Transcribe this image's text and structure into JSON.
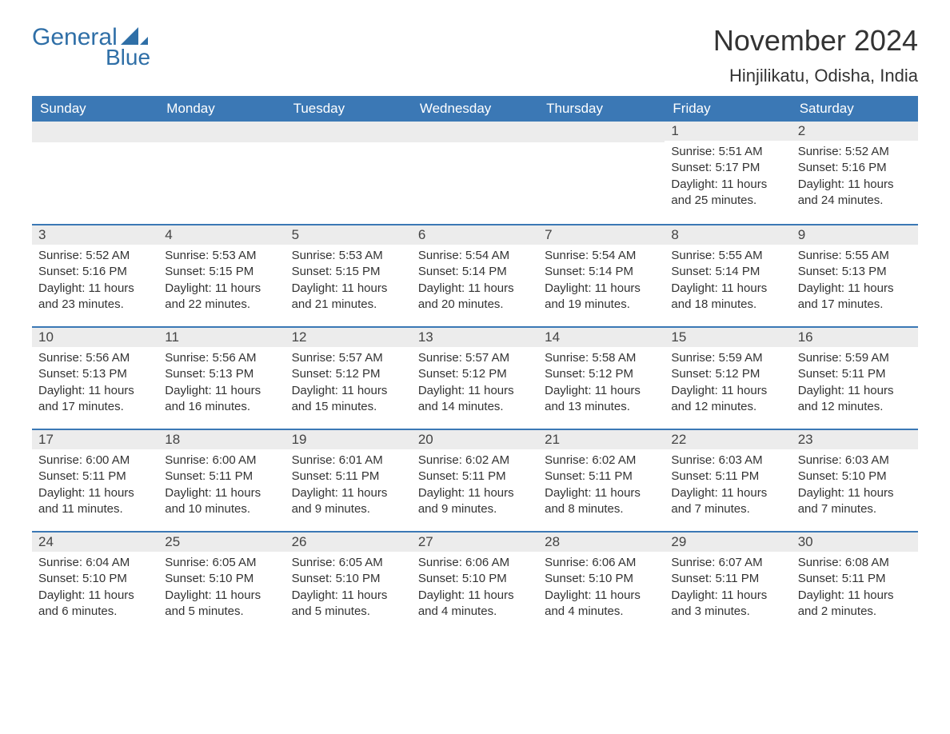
{
  "logo": {
    "text1": "General",
    "text2": "Blue",
    "accent_color": "#2f6fa7"
  },
  "title": "November 2024",
  "location": "Hinjilikatu, Odisha, India",
  "colors": {
    "header_bg": "#3b78b5",
    "header_text": "#ffffff",
    "daynum_bg": "#ececec",
    "daynum_border": "#3b78b5",
    "body_bg": "#ffffff",
    "text": "#333333"
  },
  "day_names": [
    "Sunday",
    "Monday",
    "Tuesday",
    "Wednesday",
    "Thursday",
    "Friday",
    "Saturday"
  ],
  "weeks": [
    [
      null,
      null,
      null,
      null,
      null,
      {
        "n": "1",
        "sunrise": "5:51 AM",
        "sunset": "5:17 PM",
        "daylight": "11 hours and 25 minutes."
      },
      {
        "n": "2",
        "sunrise": "5:52 AM",
        "sunset": "5:16 PM",
        "daylight": "11 hours and 24 minutes."
      }
    ],
    [
      {
        "n": "3",
        "sunrise": "5:52 AM",
        "sunset": "5:16 PM",
        "daylight": "11 hours and 23 minutes."
      },
      {
        "n": "4",
        "sunrise": "5:53 AM",
        "sunset": "5:15 PM",
        "daylight": "11 hours and 22 minutes."
      },
      {
        "n": "5",
        "sunrise": "5:53 AM",
        "sunset": "5:15 PM",
        "daylight": "11 hours and 21 minutes."
      },
      {
        "n": "6",
        "sunrise": "5:54 AM",
        "sunset": "5:14 PM",
        "daylight": "11 hours and 20 minutes."
      },
      {
        "n": "7",
        "sunrise": "5:54 AM",
        "sunset": "5:14 PM",
        "daylight": "11 hours and 19 minutes."
      },
      {
        "n": "8",
        "sunrise": "5:55 AM",
        "sunset": "5:14 PM",
        "daylight": "11 hours and 18 minutes."
      },
      {
        "n": "9",
        "sunrise": "5:55 AM",
        "sunset": "5:13 PM",
        "daylight": "11 hours and 17 minutes."
      }
    ],
    [
      {
        "n": "10",
        "sunrise": "5:56 AM",
        "sunset": "5:13 PM",
        "daylight": "11 hours and 17 minutes."
      },
      {
        "n": "11",
        "sunrise": "5:56 AM",
        "sunset": "5:13 PM",
        "daylight": "11 hours and 16 minutes."
      },
      {
        "n": "12",
        "sunrise": "5:57 AM",
        "sunset": "5:12 PM",
        "daylight": "11 hours and 15 minutes."
      },
      {
        "n": "13",
        "sunrise": "5:57 AM",
        "sunset": "5:12 PM",
        "daylight": "11 hours and 14 minutes."
      },
      {
        "n": "14",
        "sunrise": "5:58 AM",
        "sunset": "5:12 PM",
        "daylight": "11 hours and 13 minutes."
      },
      {
        "n": "15",
        "sunrise": "5:59 AM",
        "sunset": "5:12 PM",
        "daylight": "11 hours and 12 minutes."
      },
      {
        "n": "16",
        "sunrise": "5:59 AM",
        "sunset": "5:11 PM",
        "daylight": "11 hours and 12 minutes."
      }
    ],
    [
      {
        "n": "17",
        "sunrise": "6:00 AM",
        "sunset": "5:11 PM",
        "daylight": "11 hours and 11 minutes."
      },
      {
        "n": "18",
        "sunrise": "6:00 AM",
        "sunset": "5:11 PM",
        "daylight": "11 hours and 10 minutes."
      },
      {
        "n": "19",
        "sunrise": "6:01 AM",
        "sunset": "5:11 PM",
        "daylight": "11 hours and 9 minutes."
      },
      {
        "n": "20",
        "sunrise": "6:02 AM",
        "sunset": "5:11 PM",
        "daylight": "11 hours and 9 minutes."
      },
      {
        "n": "21",
        "sunrise": "6:02 AM",
        "sunset": "5:11 PM",
        "daylight": "11 hours and 8 minutes."
      },
      {
        "n": "22",
        "sunrise": "6:03 AM",
        "sunset": "5:11 PM",
        "daylight": "11 hours and 7 minutes."
      },
      {
        "n": "23",
        "sunrise": "6:03 AM",
        "sunset": "5:10 PM",
        "daylight": "11 hours and 7 minutes."
      }
    ],
    [
      {
        "n": "24",
        "sunrise": "6:04 AM",
        "sunset": "5:10 PM",
        "daylight": "11 hours and 6 minutes."
      },
      {
        "n": "25",
        "sunrise": "6:05 AM",
        "sunset": "5:10 PM",
        "daylight": "11 hours and 5 minutes."
      },
      {
        "n": "26",
        "sunrise": "6:05 AM",
        "sunset": "5:10 PM",
        "daylight": "11 hours and 5 minutes."
      },
      {
        "n": "27",
        "sunrise": "6:06 AM",
        "sunset": "5:10 PM",
        "daylight": "11 hours and 4 minutes."
      },
      {
        "n": "28",
        "sunrise": "6:06 AM",
        "sunset": "5:10 PM",
        "daylight": "11 hours and 4 minutes."
      },
      {
        "n": "29",
        "sunrise": "6:07 AM",
        "sunset": "5:11 PM",
        "daylight": "11 hours and 3 minutes."
      },
      {
        "n": "30",
        "sunrise": "6:08 AM",
        "sunset": "5:11 PM",
        "daylight": "11 hours and 2 minutes."
      }
    ]
  ],
  "labels": {
    "sunrise": "Sunrise: ",
    "sunset": "Sunset: ",
    "daylight": "Daylight: "
  }
}
